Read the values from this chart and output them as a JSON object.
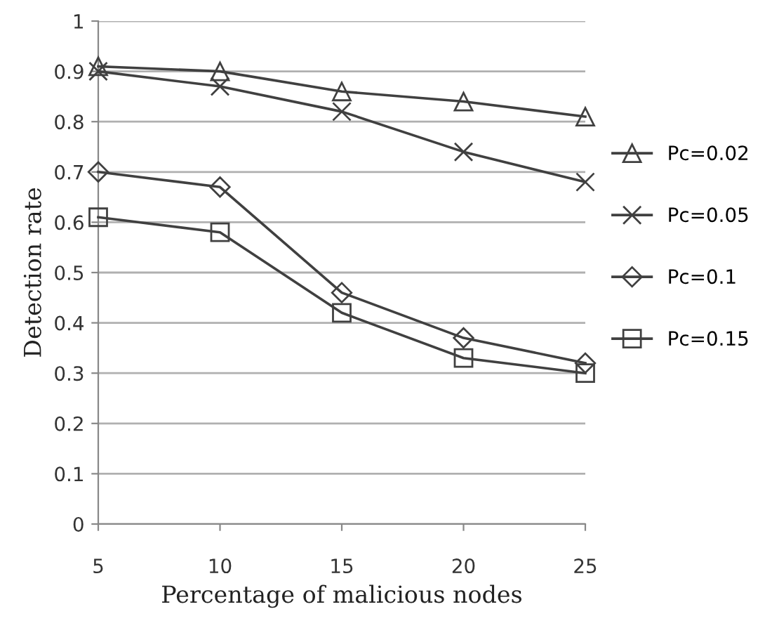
{
  "chart_data": {
    "type": "line",
    "xlabel": "Percentage of malicious nodes",
    "ylabel": "Detection rate",
    "categories": [
      "5",
      "10",
      "15",
      "20",
      "25"
    ],
    "series": [
      {
        "name": "Pc=0.02",
        "color": "#404040",
        "marker": "triangle",
        "values": [
          0.91,
          0.9,
          0.86,
          0.84,
          0.81
        ]
      },
      {
        "name": "Pc=0.05",
        "color": "#404040",
        "marker": "cross",
        "values": [
          0.9,
          0.87,
          0.82,
          0.74,
          0.68
        ]
      },
      {
        "name": "Pc=0.1",
        "color": "#404040",
        "marker": "diamond",
        "values": [
          0.7,
          0.67,
          0.46,
          0.37,
          0.32
        ]
      },
      {
        "name": "Pc=0.15",
        "color": "#404040",
        "marker": "square",
        "values": [
          0.61,
          0.58,
          0.42,
          0.33,
          0.3
        ]
      }
    ],
    "ylim": [
      0,
      1
    ],
    "yticks": [
      0,
      0.1,
      0.2,
      0.3,
      0.4,
      0.5,
      0.6,
      0.7,
      0.8,
      0.9,
      1
    ],
    "grid": "y",
    "legend": "right",
    "line_style": "solid"
  }
}
